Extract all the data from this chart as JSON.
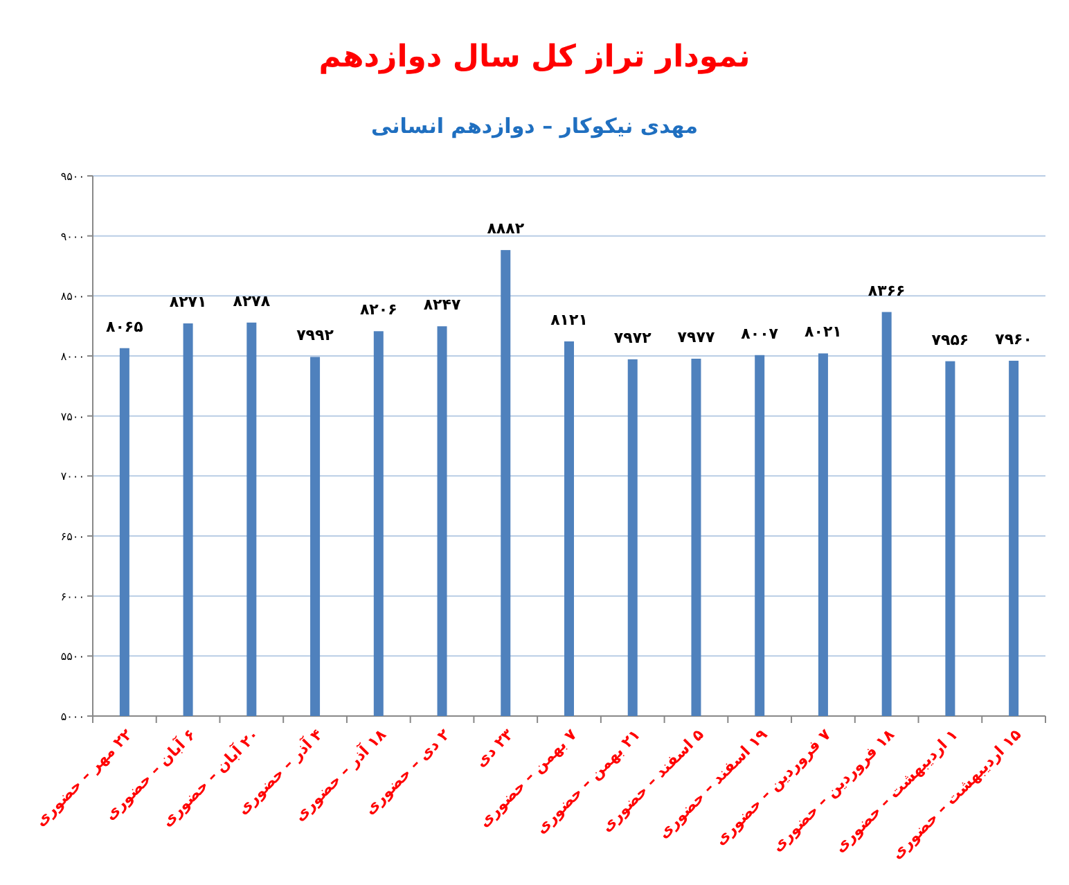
{
  "chart_data": {
    "type": "bar",
    "title": "نمودار تراز کل سال دوازدهم",
    "subtitle": "مهدی نیکوکار – دوازدهم انسانی",
    "categories": [
      "۲۲ مهر – حضوری",
      "۶ آبان – حضوری",
      "۲۰ آبان – حضوری",
      "۴ آذر – حضوری",
      "۱۸ آذر – حضوری",
      "۲ دی – حضوری",
      "۲۳ دی",
      "۷ بهمن – حضوری",
      "۲۱ بهمن – حضوری",
      "۵ اسفند – حضوری",
      "۱۹ اسفند – حضوری",
      "۷ فروردین – حضوری",
      "۱۸ فروردین – حضوری",
      "۱ اردیبهشت – حضوری",
      "۱۵ اردیبهشت – حضوری"
    ],
    "values": [
      8065,
      8271,
      8278,
      7992,
      8206,
      8247,
      8882,
      8121,
      7972,
      7977,
      8007,
      8021,
      8366,
      7956,
      7960
    ],
    "value_labels": [
      "۸۰۶۵",
      "۸۲۷۱",
      "۸۲۷۸",
      "۷۹۹۲",
      "۸۲۰۶",
      "۸۲۴۷",
      "۸۸۸۲",
      "۸۱۲۱",
      "۷۹۷۲",
      "۷۹۷۷",
      "۸۰۰۷",
      "۸۰۲۱",
      "۸۳۶۶",
      "۷۹۵۶",
      "۷۹۶۰"
    ],
    "color": "#4f81bd",
    "ylim": [
      5000,
      9500
    ],
    "yticks": [
      {
        "value": 5000,
        "label": "۵۰۰۰"
      },
      {
        "value": 5500,
        "label": "۵۵۰۰"
      },
      {
        "value": 6000,
        "label": "۶۰۰۰"
      },
      {
        "value": 6500,
        "label": "۶۵۰۰"
      },
      {
        "value": 7000,
        "label": "۷۰۰۰"
      },
      {
        "value": 7500,
        "label": "۷۵۰۰"
      },
      {
        "value": 8000,
        "label": "۸۰۰۰"
      },
      {
        "value": 8500,
        "label": "۸۵۰۰"
      },
      {
        "value": 9000,
        "label": "۹۰۰۰"
      },
      {
        "value": 9500,
        "label": "۹۵۰۰"
      }
    ],
    "grid": "y"
  }
}
